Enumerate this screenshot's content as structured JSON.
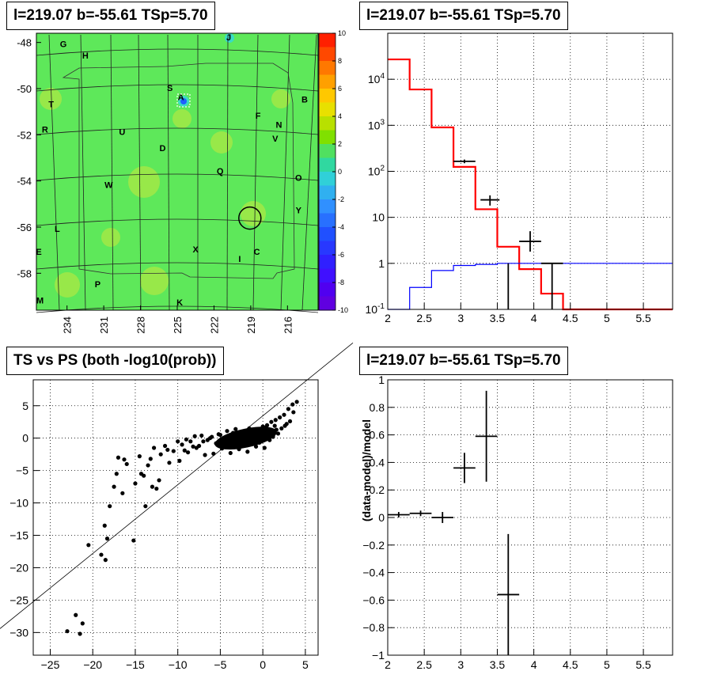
{
  "panels": {
    "map_title": "l=219.07 b=-55.61 TSp=5.70",
    "spectrum_title": "l=219.07 b=-55.61 TSp=5.70",
    "scatter_title": "TS vs PS (both -log10(prob))",
    "residual_title": "l=219.07 b=-55.61 TSp=5.70"
  },
  "chart_data": [
    {
      "type": "heatmap",
      "title": "l=219.07 b=-55.61 TSp=5.70",
      "x_tick_labels": [
        "234",
        "231",
        "228",
        "225",
        "222",
        "219",
        "216"
      ],
      "y_tick_labels": [
        "-48",
        "-50",
        "-52",
        "-54",
        "-56",
        "-58"
      ],
      "xlim": [
        236.5,
        213.5
      ],
      "ylim": [
        -59.6,
        -47.6
      ],
      "colorbar": {
        "range": [
          -10,
          10
        ],
        "tick_labels": [
          "10",
          "8",
          "6",
          "4",
          "2",
          "0",
          "-2",
          "-4",
          "-6",
          "-8",
          "-10"
        ]
      },
      "source_labels": [
        {
          "text": "G",
          "l": 234.3,
          "b": -48.2
        },
        {
          "text": "H",
          "l": 232.5,
          "b": -48.7
        },
        {
          "text": "J",
          "l": 220.8,
          "b": -47.9
        },
        {
          "text": "S",
          "l": 225.6,
          "b": -50.1
        },
        {
          "text": "A",
          "l": 224.7,
          "b": -50.5
        },
        {
          "text": "B",
          "l": 214.6,
          "b": -50.6
        },
        {
          "text": "T",
          "l": 235.3,
          "b": -50.8
        },
        {
          "text": "F",
          "l": 218.4,
          "b": -51.3
        },
        {
          "text": "N",
          "l": 216.7,
          "b": -51.7
        },
        {
          "text": "R",
          "l": 235.8,
          "b": -51.9
        },
        {
          "text": "U",
          "l": 229.5,
          "b": -52.0
        },
        {
          "text": "V",
          "l": 217.0,
          "b": -52.3
        },
        {
          "text": "D",
          "l": 226.2,
          "b": -52.7
        },
        {
          "text": "Q",
          "l": 221.5,
          "b": -53.7
        },
        {
          "text": "O",
          "l": 215.1,
          "b": -54.0
        },
        {
          "text": "W",
          "l": 230.6,
          "b": -54.3
        },
        {
          "text": "Y",
          "l": 215.1,
          "b": -55.4
        },
        {
          "text": "L",
          "l": 234.8,
          "b": -56.2
        },
        {
          "text": "E",
          "l": 236.3,
          "b": -57.2
        },
        {
          "text": "X",
          "l": 223.5,
          "b": -57.1
        },
        {
          "text": "C",
          "l": 218.5,
          "b": -57.2
        },
        {
          "text": "I",
          "l": 219.9,
          "b": -57.5
        },
        {
          "text": "P",
          "l": 231.5,
          "b": -58.6
        },
        {
          "text": "M",
          "l": 236.2,
          "b": -59.3
        },
        {
          "text": "K",
          "l": 224.8,
          "b": -59.4
        }
      ],
      "marked_source": {
        "l": 219.07,
        "b": -55.61
      }
    },
    {
      "type": "line",
      "title": "l=219.07 b=-55.61 TSp=5.70",
      "xlim": [
        2,
        5.9
      ],
      "ylim": [
        0.1,
        100000
      ],
      "y_scale": "log",
      "x_tick_labels": [
        "2",
        "2.5",
        "3",
        "3.5",
        "4",
        "4.5",
        "5",
        "5.5"
      ],
      "y_tick_labels": [
        "10^-1",
        "1",
        "10",
        "10^2",
        "10^3",
        "10^4"
      ],
      "grid": true,
      "series": [
        {
          "color": "#ff0000",
          "style": "step",
          "edges": [
            2.0,
            2.3,
            2.6,
            2.9,
            3.2,
            3.5,
            3.8,
            4.1,
            4.4,
            5.9
          ],
          "values": [
            27000,
            6000,
            900,
            125,
            15,
            2.3,
            0.75,
            0.22,
            0.1
          ]
        },
        {
          "color": "#0000ff",
          "style": "step",
          "edges": [
            2.0,
            2.3,
            2.6,
            2.9,
            3.2,
            3.5,
            5.9
          ],
          "values": [
            0.1,
            0.3,
            0.7,
            0.9,
            0.95,
            1.0
          ]
        },
        {
          "color": "#000000",
          "style": "errorbar",
          "points": [
            {
              "x": 3.05,
              "y": 165,
              "xerr": 0.15,
              "ylo": 150,
              "yhi": 180
            },
            {
              "x": 3.4,
              "y": 24,
              "xerr": 0.13,
              "ylo": 18,
              "yhi": 30
            },
            {
              "x": 3.65,
              "y": 1.0,
              "xerr": 0.0,
              "ylo": 0.1,
              "yhi": 1.0
            },
            {
              "x": 3.95,
              "y": 3.0,
              "xerr": 0.15,
              "ylo": 1.8,
              "yhi": 5.0
            },
            {
              "x": 4.25,
              "y": 1.0,
              "xerr": 0.15,
              "ylo": 0.1,
              "yhi": 1.0
            }
          ]
        }
      ]
    },
    {
      "type": "scatter",
      "title": "TS vs PS (both -log10(prob))",
      "xlim": [
        -27,
        6.5
      ],
      "ylim": [
        -33.5,
        9
      ],
      "x_tick_labels": [
        "-25",
        "-20",
        "-15",
        "-10",
        "-5",
        "0",
        "5"
      ],
      "y_tick_labels": [
        "-30",
        "-25",
        "-20",
        "-15",
        "-10",
        "-5",
        "0",
        "5"
      ],
      "grid": true,
      "reference_line": {
        "slope": 1,
        "intercept": 0
      },
      "points_x": [
        -23,
        -22,
        -21.5,
        -21.2,
        -20.5,
        -19,
        -18.5,
        -18.3,
        -18.6,
        -18,
        -17.5,
        -17.2,
        -16.5,
        -16,
        -15.2,
        -15,
        -14.5,
        -14,
        -13.8,
        -13.2,
        -13,
        -12.8,
        -12.5,
        -12,
        -11.5,
        -11,
        -10.5,
        -10,
        -9.5,
        -9,
        -8.5,
        -8,
        -7.5,
        -7,
        -6.5,
        -6,
        -5.5,
        -5,
        -4.5,
        -4,
        -3.5,
        -3,
        -2.5,
        -2,
        -1.5,
        -1,
        -0.5,
        0,
        0.5,
        1,
        1.5,
        2,
        2.5,
        3,
        3.5,
        4,
        -17,
        -16.3,
        -14.3,
        -13.5,
        -12.2,
        -11.2,
        -9.8,
        -8.8,
        -7.8,
        -6.8,
        -5.8,
        -4.8,
        -3.8,
        -2.8,
        -1.8,
        -0.8,
        0.2,
        1.2,
        2.2,
        3.2,
        -4.2,
        -3.2,
        -2.2,
        -1.2,
        -0.2,
        0.8,
        1.8,
        2.8,
        -6.2,
        -5.2,
        -3.4,
        -2.4,
        -1.4,
        -0.4,
        0.6,
        1.6,
        2.6,
        3.6,
        -9.2,
        -8.2,
        -7.2,
        -2.6,
        -1.6,
        -0.6,
        0.4,
        1.4
      ],
      "points_y": [
        -29.8,
        -27.3,
        -30.2,
        -28.6,
        -16.5,
        -18,
        -18.8,
        -15.5,
        -13.5,
        -10.5,
        -7.5,
        -5.5,
        -8.5,
        -4,
        -15.8,
        -7,
        -2.8,
        -5.8,
        -10.5,
        -3.2,
        -7.5,
        -1.5,
        -7.8,
        -2.5,
        -1.2,
        -3.8,
        -2,
        -0.5,
        -1,
        -0.2,
        -0.5,
        0.3,
        -1.2,
        -0.5,
        -0.3,
        0.2,
        -0.8,
        0.5,
        -0.2,
        0.1,
        0.8,
        -0.5,
        1,
        0.3,
        0.6,
        0.9,
        1.2,
        1.8,
        2,
        2.5,
        2.8,
        3.2,
        3.6,
        4.5,
        5.2,
        5.6,
        -3,
        -3.3,
        -5.5,
        -4.2,
        -6.5,
        -1.8,
        -3.5,
        -2.2,
        -1.5,
        -2.6,
        -2.4,
        -1.6,
        -2.3,
        -1.7,
        -2.1,
        -1.3,
        -1.5,
        0.2,
        1.5,
        2.6,
        1.1,
        1.4,
        0.4,
        -0.6,
        0.3,
        -0.3,
        0.7,
        2.2,
        0,
        0.6,
        -1.4,
        -1.1,
        -0.9,
        -0.7,
        0.1,
        1.3,
        1.9,
        4,
        -1.9,
        -1.3,
        0.4,
        0.9,
        1.5,
        0.6,
        1.7,
        1.9
      ]
    },
    {
      "type": "scatter",
      "title": "l=219.07 b=-55.61 TSp=5.70",
      "ylabel": "(data-model)/model",
      "xlim": [
        2,
        5.9
      ],
      "ylim": [
        -1,
        1
      ],
      "x_tick_labels": [
        "2",
        "2.5",
        "3",
        "3.5",
        "4",
        "4.5",
        "5",
        "5.5"
      ],
      "y_tick_labels": [
        "-1",
        "-0.8",
        "-0.6",
        "-0.4",
        "-0.2",
        "0",
        "0.2",
        "0.4",
        "0.6",
        "0.8",
        "1"
      ],
      "grid": true,
      "points": [
        {
          "x": 2.15,
          "y": 0.02,
          "xerr": 0.15,
          "yerr": 0.02
        },
        {
          "x": 2.45,
          "y": 0.03,
          "xerr": 0.15,
          "yerr": 0.02
        },
        {
          "x": 2.75,
          "y": 0.0,
          "xerr": 0.15,
          "yerr": 0.04
        },
        {
          "x": 3.05,
          "y": 0.36,
          "xerr": 0.15,
          "yerr": 0.11
        },
        {
          "x": 3.35,
          "y": 0.59,
          "xerr": 0.15,
          "yerr": 0.33
        },
        {
          "x": 3.65,
          "y": -0.56,
          "xerr": 0.15,
          "yerr": 0.44
        }
      ]
    }
  ]
}
